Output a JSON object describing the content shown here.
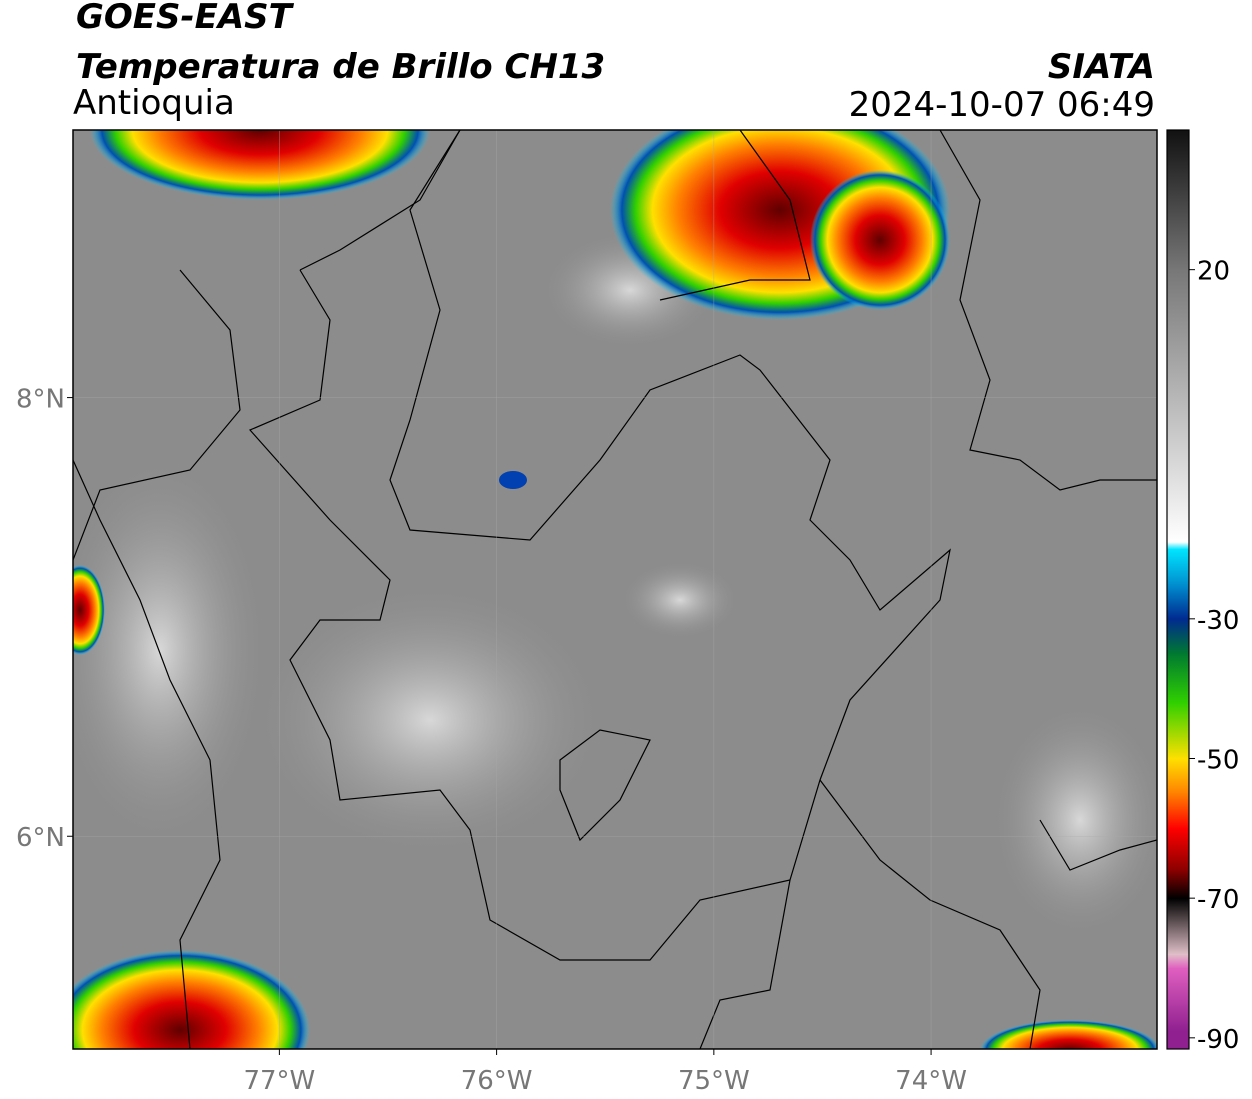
{
  "header": {
    "satellite": "GOES-EAST",
    "product": "Temperatura de Brillo CH13",
    "region": "Antioquia",
    "source": "SIATA",
    "datetime": "2024-10-07 06:49"
  },
  "map": {
    "xlim": [
      -77.95,
      -72.96
    ],
    "ylim": [
      5.03,
      9.22
    ],
    "xticks": [
      {
        "value": -77,
        "label": "77°W"
      },
      {
        "value": -76,
        "label": "76°W"
      },
      {
        "value": -75,
        "label": "75°W"
      },
      {
        "value": -74,
        "label": "74°W"
      }
    ],
    "yticks": [
      {
        "value": 8,
        "label": "8°N"
      },
      {
        "value": 6,
        "label": "6°N"
      }
    ],
    "grid": true
  },
  "colorbar": {
    "ylim": [
      -91.6,
      40
    ],
    "yticks": [
      20,
      -30,
      -50,
      -70,
      -90
    ],
    "stops": [
      {
        "value": 40,
        "color": "#111111"
      },
      {
        "value": 20,
        "color": "#777777"
      },
      {
        "value": -19,
        "color": "#ffffff"
      },
      {
        "value": -20,
        "color": "#00e5ff"
      },
      {
        "value": -25,
        "color": "#0090d0"
      },
      {
        "value": -30,
        "color": "#002a90"
      },
      {
        "value": -35,
        "color": "#007a30"
      },
      {
        "value": -42,
        "color": "#30d000"
      },
      {
        "value": -50,
        "color": "#ffe000"
      },
      {
        "value": -55,
        "color": "#ff8000"
      },
      {
        "value": -60,
        "color": "#ff0000"
      },
      {
        "value": -66,
        "color": "#8a0000"
      },
      {
        "value": -70,
        "color": "#000000"
      },
      {
        "value": -78,
        "color": "#e0c0c8"
      },
      {
        "value": -80,
        "color": "#e060c0"
      },
      {
        "value": -89,
        "color": "#902090"
      }
    ]
  }
}
